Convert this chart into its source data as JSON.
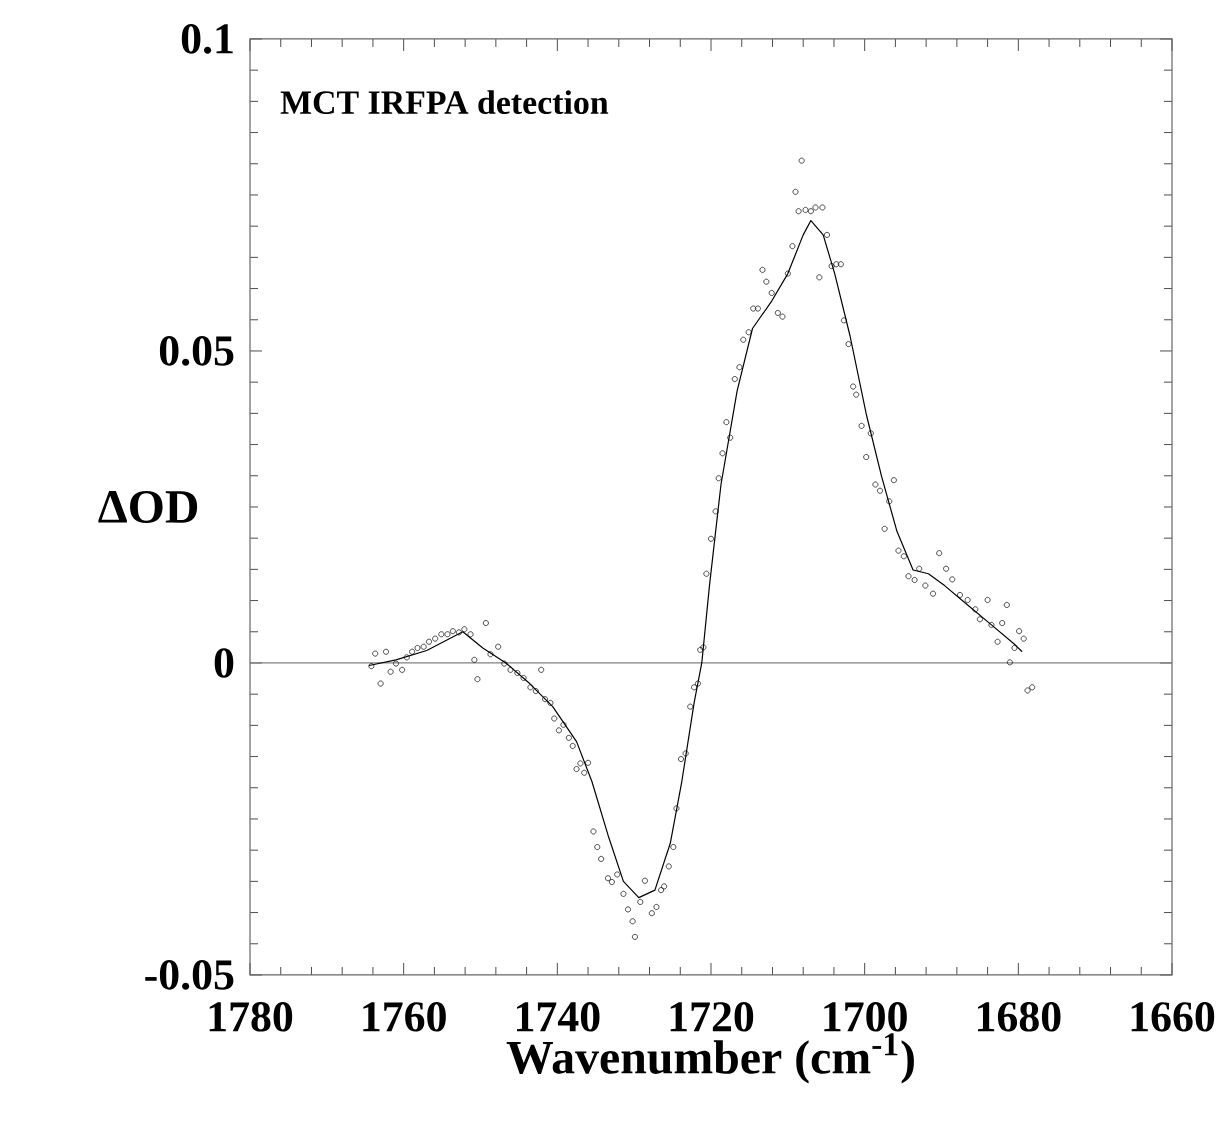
{
  "chart_data": {
    "type": "scatter",
    "title": "MCT IRFPA detection",
    "xlabel": "Wavenumber (cm$^{-1}$)",
    "ylabel": "ΔOD",
    "xlim": [
      1780,
      1660
    ],
    "ylim": [
      -0.05,
      0.1
    ],
    "xticks": [
      1780,
      1760,
      1740,
      1720,
      1700,
      1680,
      1660
    ],
    "yticks": [
      -0.05,
      0,
      0.05,
      0.1
    ],
    "ref_lines": [
      {
        "axis": "y",
        "value": 0,
        "color": "#808080"
      }
    ],
    "series": [
      {
        "marker": "circle",
        "color": "#000000",
        "x": [
          1764.2,
          1763.7,
          1763.0,
          1762.3,
          1761.7,
          1761.0,
          1760.2,
          1759.6,
          1758.9,
          1758.2,
          1757.4,
          1756.7,
          1755.9,
          1755.1,
          1754.3,
          1753.6,
          1752.8,
          1752.1,
          1751.3,
          1750.8,
          1750.4,
          1749.3,
          1748.7,
          1747.7,
          1746.9,
          1746.1,
          1745.2,
          1744.4,
          1743.5,
          1742.8,
          1742.1,
          1741.6,
          1740.9,
          1740.4,
          1739.8,
          1739.2,
          1738.5,
          1738.0,
          1737.5,
          1737.0,
          1736.5,
          1736.0,
          1735.3,
          1734.8,
          1734.3,
          1733.4,
          1732.9,
          1732.2,
          1731.4,
          1730.8,
          1730.2,
          1729.9,
          1729.2,
          1728.6,
          1727.7,
          1727.1,
          1726.5,
          1726.1,
          1725.5,
          1724.9,
          1724.5,
          1723.9,
          1723.3,
          1722.7,
          1722.2,
          1721.7,
          1721.4,
          1721.0,
          1720.6,
          1720.0,
          1719.4,
          1719.0,
          1718.5,
          1718.0,
          1717.5,
          1716.9,
          1716.3,
          1715.8,
          1715.1,
          1714.5,
          1713.9,
          1713.3,
          1712.8,
          1712.1,
          1711.3,
          1710.7,
          1710.0,
          1709.4,
          1709.0,
          1708.6,
          1708.2,
          1707.7,
          1707.0,
          1706.4,
          1705.9,
          1705.5,
          1704.9,
          1704.3,
          1703.7,
          1703.1,
          1702.7,
          1702.1,
          1701.5,
          1701.1,
          1700.4,
          1699.8,
          1699.2,
          1698.6,
          1698.0,
          1697.4,
          1696.8,
          1696.2,
          1695.6,
          1694.9,
          1694.3,
          1693.5,
          1692.9,
          1692.1,
          1691.1,
          1690.3,
          1689.4,
          1688.6,
          1687.6,
          1686.6,
          1685.6,
          1685.0,
          1684.0,
          1683.5,
          1682.7,
          1682.1,
          1681.5,
          1681.1,
          1680.5,
          1679.9,
          1679.3,
          1678.8,
          1678.2
        ],
        "values": [
          -0.0005,
          0.0015,
          -0.0033,
          0.0018,
          -0.0014,
          -0.0001,
          -0.0011,
          0.0009,
          0.0018,
          0.0024,
          0.0026,
          0.0034,
          0.0039,
          0.0046,
          0.0046,
          0.0051,
          0.0049,
          0.0054,
          0.0046,
          0.0005,
          -0.0026,
          0.0064,
          0.0014,
          0.0026,
          -0.0001,
          -0.0011,
          -0.0016,
          -0.0024,
          -0.0039,
          -0.0045,
          -0.0011,
          -0.0058,
          -0.0064,
          -0.0089,
          -0.0108,
          -0.0099,
          -0.012,
          -0.0133,
          -0.017,
          -0.0161,
          -0.0176,
          -0.016,
          -0.027,
          -0.0295,
          -0.0314,
          -0.0345,
          -0.0351,
          -0.0339,
          -0.037,
          -0.0395,
          -0.0414,
          -0.0439,
          -0.0383,
          -0.0349,
          -0.0401,
          -0.0391,
          -0.0364,
          -0.0358,
          -0.0326,
          -0.0295,
          -0.0233,
          -0.0154,
          -0.0145,
          -0.007,
          -0.0039,
          -0.0033,
          0.0021,
          0.0025,
          0.0143,
          0.0199,
          0.0243,
          0.0296,
          0.0336,
          0.0386,
          0.0361,
          0.0455,
          0.0474,
          0.0518,
          0.053,
          0.0568,
          0.0568,
          0.063,
          0.0611,
          0.0593,
          0.0561,
          0.0555,
          0.0624,
          0.0668,
          0.0755,
          0.0724,
          0.0805,
          0.0726,
          0.0724,
          0.073,
          0.0618,
          0.073,
          0.0686,
          0.0636,
          0.0639,
          0.0639,
          0.0549,
          0.0511,
          0.0443,
          0.043,
          0.038,
          0.033,
          0.0368,
          0.0286,
          0.0276,
          0.0215,
          0.0259,
          0.0293,
          0.018,
          0.0171,
          0.0139,
          0.0133,
          0.0151,
          0.0124,
          0.0111,
          0.0176,
          0.0151,
          0.0134,
          0.0109,
          0.0101,
          0.0086,
          0.007,
          0.0101,
          0.0061,
          0.0034,
          0.0064,
          0.0093,
          0.0001,
          0.0024,
          0.0051,
          0.0039,
          -0.0044,
          -0.0039
        ]
      },
      {
        "type": "line",
        "marker": "none",
        "color": "#000000",
        "x": [
          1764.5,
          1761,
          1757,
          1752.3,
          1749.7,
          1746.7,
          1743.6,
          1740.6,
          1737.5,
          1735.5,
          1733.4,
          1731.4,
          1729.4,
          1727.3,
          1725.3,
          1723.8,
          1722.2,
          1721.2,
          1720.2,
          1718.7,
          1716.6,
          1714.6,
          1712.1,
          1710,
          1708,
          1707,
          1705.4,
          1703.9,
          1701.9,
          1699.8,
          1697.8,
          1695.8,
          1693.7,
          1691.7,
          1689.6,
          1686.6,
          1683.5,
          1680.5,
          1679.5
        ],
        "values": [
          -0.0004,
          0.0005,
          0.002,
          0.005,
          0.0024,
          0,
          -0.0033,
          -0.007,
          -0.0126,
          -0.019,
          -0.0276,
          -0.035,
          -0.0376,
          -0.0364,
          -0.0289,
          -0.019,
          -0.0064,
          0,
          0.0124,
          0.0286,
          0.0436,
          0.0536,
          0.058,
          0.0624,
          0.0686,
          0.0709,
          0.0686,
          0.0624,
          0.0524,
          0.0399,
          0.0299,
          0.0211,
          0.0149,
          0.0143,
          0.0124,
          0.0093,
          0.0061,
          0.003,
          0.0018
        ]
      }
    ]
  }
}
